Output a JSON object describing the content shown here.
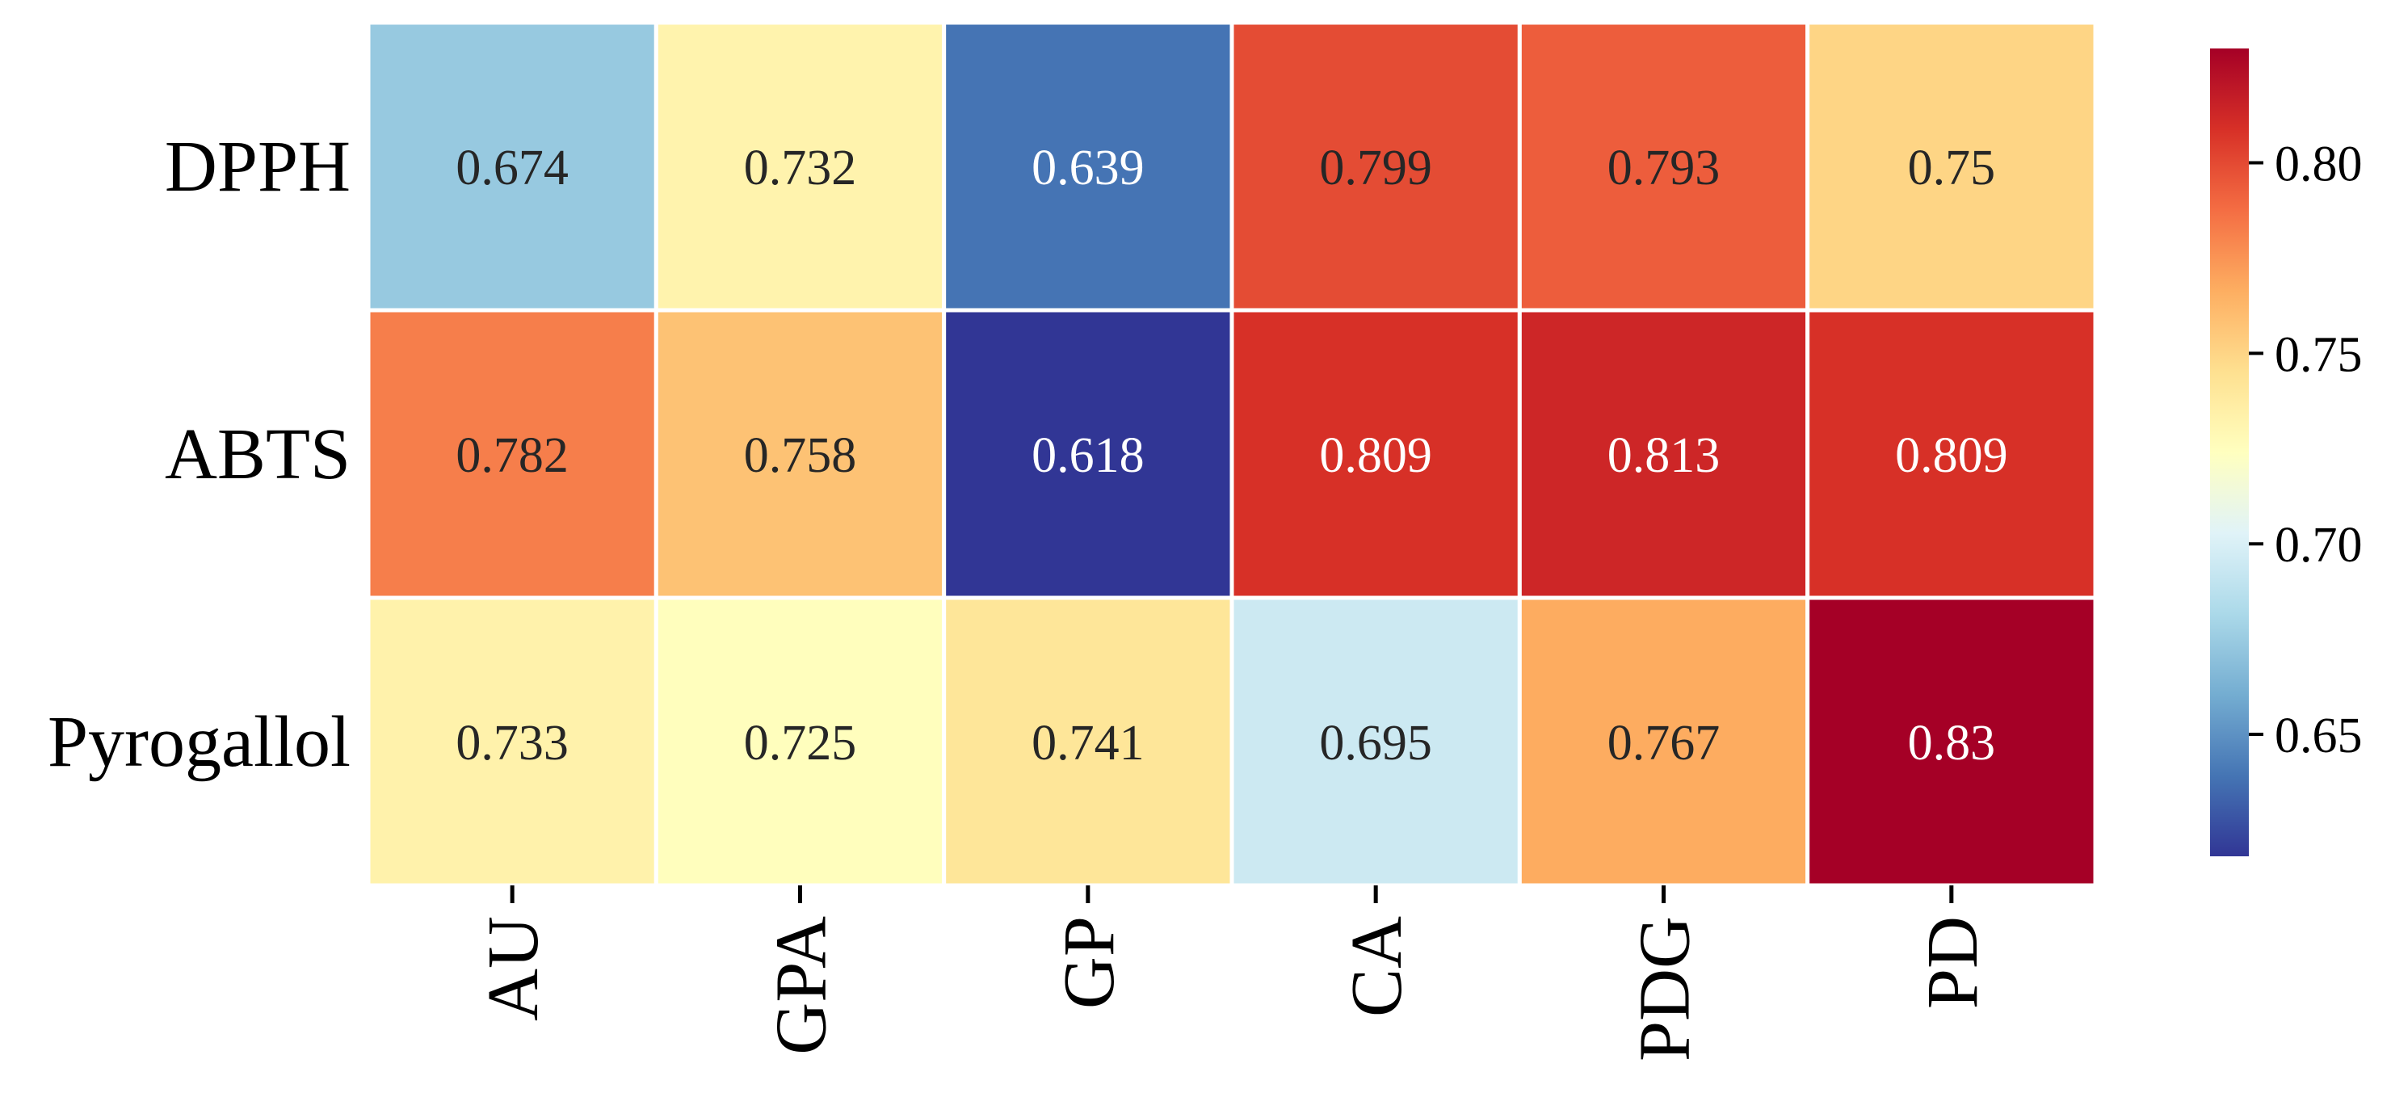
{
  "chart_data": {
    "type": "heatmap",
    "title": "",
    "xlabel": "",
    "ylabel": "",
    "x_categories": [
      "AU",
      "GPA",
      "GP",
      "CA",
      "PDG",
      "PD"
    ],
    "y_categories": [
      "DPPH",
      "ABTS",
      "Pyrogallol"
    ],
    "values": [
      [
        0.674,
        0.732,
        0.639,
        0.799,
        0.793,
        0.75
      ],
      [
        0.782,
        0.758,
        0.618,
        0.809,
        0.813,
        0.809
      ],
      [
        0.733,
        0.725,
        0.741,
        0.695,
        0.767,
        0.83
      ]
    ],
    "value_labels": [
      [
        "0.674",
        "0.732",
        "0.639",
        "0.799",
        "0.793",
        "0.75"
      ],
      [
        "0.782",
        "0.758",
        "0.618",
        "0.809",
        "0.813",
        "0.809"
      ],
      [
        "0.733",
        "0.725",
        "0.741",
        "0.695",
        "0.767",
        "0.83"
      ]
    ],
    "colorbar": {
      "min": 0.618,
      "max": 0.83,
      "ticks": [
        0.65,
        0.7,
        0.75,
        0.8
      ],
      "tick_labels": [
        "0.65",
        "0.70",
        "0.75",
        "0.80"
      ],
      "colormap": "RdYlBu_r"
    },
    "cell_border_color": "#ffffff",
    "grid": false
  }
}
